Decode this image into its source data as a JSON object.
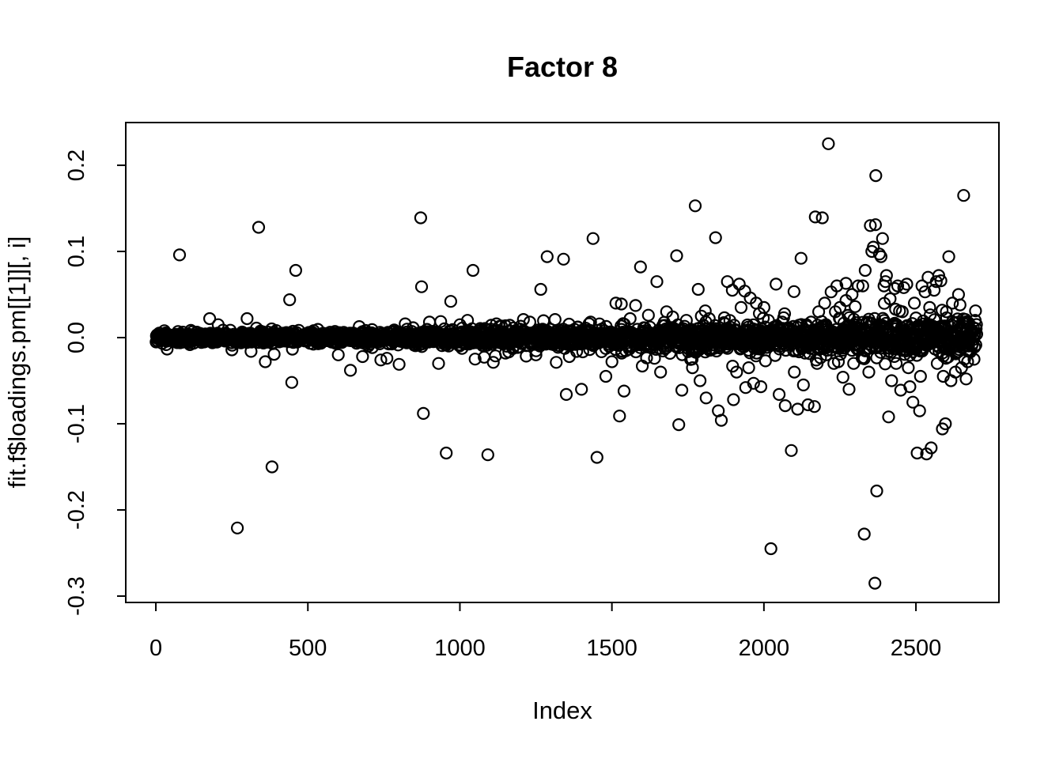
{
  "chart_data": {
    "type": "scatter",
    "title": "Factor 8",
    "xlabel": "Index",
    "ylabel": "fit.f$loadings.pm[[1]][, i]",
    "marker": "open-circle",
    "marker_color": "#000000",
    "background_color": "#ffffff",
    "grid": false,
    "legend": false,
    "x_ticks": {
      "values": [
        0,
        500,
        1000,
        1500,
        2000,
        2500
      ],
      "labels": [
        "0",
        "500",
        "1000",
        "1500",
        "2000",
        "2500"
      ]
    },
    "y_ticks": {
      "values": [
        -0.3,
        -0.2,
        -0.1,
        0.0,
        0.1,
        0.2
      ],
      "labels": [
        "-0.3",
        "-0.2",
        "-0.1",
        "0.0",
        "0.1",
        "0.2"
      ]
    },
    "xlim": [
      -99,
      2773
    ],
    "ylim": [
      -0.3074,
      0.2496
    ],
    "n_points": 2700,
    "description": "Index plot of posterior-mean factor loadings for factor 8: ~2700 points tightly clustered around 0 with variance increasing toward higher indices and scattered outliers up to +0.225 and down to -0.285.",
    "dense_band": {
      "center": 0.0,
      "sd_base": 0.003,
      "sd_growth": 0.0085,
      "sd_power": 1.8,
      "tail_fraction": 0.07,
      "tail_scale": 2.6,
      "seed": 1234567
    },
    "outliers": [
      [
        78,
        0.096
      ],
      [
        177,
        0.022
      ],
      [
        205,
        0.015
      ],
      [
        268,
        -0.221
      ],
      [
        300,
        0.022
      ],
      [
        338,
        0.128
      ],
      [
        360,
        -0.028
      ],
      [
        382,
        -0.15
      ],
      [
        440,
        0.044
      ],
      [
        447,
        -0.052
      ],
      [
        460,
        0.078
      ],
      [
        600,
        -0.02
      ],
      [
        640,
        -0.038
      ],
      [
        680,
        -0.022
      ],
      [
        740,
        -0.026
      ],
      [
        760,
        -0.024
      ],
      [
        800,
        -0.031
      ],
      [
        820,
        0.016
      ],
      [
        871,
        0.139
      ],
      [
        874,
        0.059
      ],
      [
        880,
        -0.088
      ],
      [
        900,
        0.018
      ],
      [
        930,
        -0.03
      ],
      [
        955,
        -0.134
      ],
      [
        970,
        0.042
      ],
      [
        1000,
        0.015
      ],
      [
        1043,
        0.078
      ],
      [
        1050,
        -0.025
      ],
      [
        1092,
        -0.136
      ],
      [
        1120,
        0.016
      ],
      [
        1150,
        -0.018
      ],
      [
        1209,
        0.021
      ],
      [
        1230,
        0.018
      ],
      [
        1250,
        -0.02
      ],
      [
        1266,
        0.056
      ],
      [
        1287,
        0.094
      ],
      [
        1313,
        0.021
      ],
      [
        1341,
        0.091
      ],
      [
        1350,
        -0.066
      ],
      [
        1360,
        -0.022
      ],
      [
        1400,
        -0.06
      ],
      [
        1430,
        0.018
      ],
      [
        1438,
        0.115
      ],
      [
        1451,
        -0.139
      ],
      [
        1480,
        -0.045
      ],
      [
        1500,
        -0.028
      ],
      [
        1513,
        0.04
      ],
      [
        1525,
        -0.091
      ],
      [
        1531,
        0.039
      ],
      [
        1540,
        -0.062
      ],
      [
        1560,
        0.022
      ],
      [
        1594,
        0.082
      ],
      [
        1600,
        -0.033
      ],
      [
        1620,
        0.026
      ],
      [
        1640,
        -0.024
      ],
      [
        1648,
        0.065
      ],
      [
        1660,
        -0.04
      ],
      [
        1680,
        0.03
      ],
      [
        1700,
        0.024
      ],
      [
        1713,
        0.095
      ],
      [
        1720,
        -0.101
      ],
      [
        1730,
        -0.061
      ],
      [
        1745,
        0.02
      ],
      [
        1765,
        -0.035
      ],
      [
        1774,
        0.153
      ],
      [
        1784,
        0.056
      ],
      [
        1790,
        -0.05
      ],
      [
        1807,
        0.031
      ],
      [
        1810,
        -0.07
      ],
      [
        1820,
        0.022
      ],
      [
        1841,
        0.116
      ],
      [
        1850,
        -0.085
      ],
      [
        1860,
        -0.096
      ],
      [
        1870,
        0.023
      ],
      [
        1880,
        0.065
      ],
      [
        1896,
        0.055
      ],
      [
        1900,
        -0.072
      ],
      [
        1910,
        -0.04
      ],
      [
        1919,
        0.062
      ],
      [
        1925,
        0.035
      ],
      [
        1937,
        0.054
      ],
      [
        1940,
        -0.058
      ],
      [
        1950,
        -0.035
      ],
      [
        1955,
        0.046
      ],
      [
        1966,
        -0.053
      ],
      [
        1975,
        0.04
      ],
      [
        1985,
        0.028
      ],
      [
        1990,
        -0.057
      ],
      [
        2000,
        0.035
      ],
      [
        2005,
        -0.027
      ],
      [
        2015,
        0.02
      ],
      [
        2023,
        -0.245
      ],
      [
        2040,
        0.062
      ],
      [
        2050,
        -0.066
      ],
      [
        2060,
        0.018
      ],
      [
        2070,
        -0.079
      ],
      [
        2080,
        0.01
      ],
      [
        2090,
        -0.131
      ],
      [
        2100,
        -0.04
      ],
      [
        2110,
        0.012
      ],
      [
        2111,
        -0.083
      ],
      [
        2122,
        0.092
      ],
      [
        2130,
        -0.055
      ],
      [
        2140,
        0.015
      ],
      [
        2145,
        -0.078
      ],
      [
        2155,
        0.018
      ],
      [
        2166,
        -0.08
      ],
      [
        2169,
        0.14
      ],
      [
        2175,
        -0.03
      ],
      [
        2180,
        0.03
      ],
      [
        2192,
        0.139
      ],
      [
        2200,
        0.04
      ],
      [
        2205,
        -0.02
      ],
      [
        2212,
        0.225
      ],
      [
        2221,
        0.053
      ],
      [
        2230,
        -0.03
      ],
      [
        2235,
        0.03
      ],
      [
        2240,
        0.06
      ],
      [
        2245,
        -0.028
      ],
      [
        2250,
        0.035
      ],
      [
        2260,
        -0.046
      ],
      [
        2270,
        0.043
      ],
      [
        2280,
        -0.06
      ],
      [
        2290,
        0.05
      ],
      [
        2295,
        -0.03
      ],
      [
        2300,
        0.036
      ],
      [
        2310,
        0.06
      ],
      [
        2325,
        0.06
      ],
      [
        2330,
        -0.228
      ],
      [
        2333,
        0.078
      ],
      [
        2345,
        -0.04
      ],
      [
        2350,
        0.13
      ],
      [
        2355,
        0.1
      ],
      [
        2360,
        0.105
      ],
      [
        2365,
        -0.285
      ],
      [
        2367,
        0.131
      ],
      [
        2368,
        0.188
      ],
      [
        2371,
        -0.178
      ],
      [
        2380,
        0.097
      ],
      [
        2385,
        0.094
      ],
      [
        2390,
        0.115
      ],
      [
        2395,
        0.06
      ],
      [
        2400,
        0.065
      ],
      [
        2403,
        0.072
      ],
      [
        2410,
        -0.092
      ],
      [
        2415,
        0.045
      ],
      [
        2420,
        -0.05
      ],
      [
        2430,
        0.057
      ],
      [
        2435,
        -0.03
      ],
      [
        2440,
        0.06
      ],
      [
        2450,
        -0.061
      ],
      [
        2455,
        0.03
      ],
      [
        2460,
        0.058
      ],
      [
        2470,
        0.062
      ],
      [
        2475,
        -0.035
      ],
      [
        2480,
        -0.057
      ],
      [
        2490,
        -0.075
      ],
      [
        2495,
        0.04
      ],
      [
        2504,
        -0.134
      ],
      [
        2512,
        -0.085
      ],
      [
        2515,
        -0.045
      ],
      [
        2520,
        0.06
      ],
      [
        2530,
        0.053
      ],
      [
        2535,
        -0.135
      ],
      [
        2540,
        0.07
      ],
      [
        2545,
        0.035
      ],
      [
        2550,
        -0.128
      ],
      [
        2560,
        0.055
      ],
      [
        2567,
        0.065
      ],
      [
        2570,
        -0.03
      ],
      [
        2575,
        0.072
      ],
      [
        2582,
        0.066
      ],
      [
        2587,
        -0.106
      ],
      [
        2590,
        -0.045
      ],
      [
        2597,
        -0.1
      ],
      [
        2600,
        0.03
      ],
      [
        2608,
        0.094
      ],
      [
        2615,
        -0.05
      ],
      [
        2620,
        0.04
      ],
      [
        2630,
        -0.04
      ],
      [
        2640,
        0.05
      ],
      [
        2645,
        0.038
      ],
      [
        2650,
        -0.035
      ],
      [
        2655,
        0.017
      ],
      [
        2657,
        0.165
      ],
      [
        2660,
        -0.025
      ],
      [
        2665,
        -0.048
      ],
      [
        2668,
        -0.015
      ]
    ]
  }
}
